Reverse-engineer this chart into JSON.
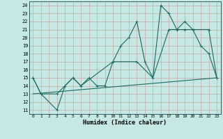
{
  "xlabel": "Humidex (Indice chaleur)",
  "bg_color": "#c5e8e5",
  "grid_color": "#c8a8a8",
  "line_color": "#1a6b60",
  "xlim": [
    -0.5,
    23.5
  ],
  "ylim": [
    10.5,
    24.5
  ],
  "xticks": [
    0,
    1,
    2,
    3,
    4,
    5,
    6,
    7,
    8,
    9,
    10,
    11,
    12,
    13,
    14,
    15,
    16,
    17,
    18,
    19,
    20,
    21,
    22,
    23
  ],
  "yticks": [
    11,
    12,
    13,
    14,
    15,
    16,
    17,
    18,
    19,
    20,
    21,
    22,
    23,
    24
  ],
  "line1_x": [
    0,
    1,
    3,
    4,
    5,
    6,
    7,
    8,
    9,
    10,
    11,
    12,
    13,
    14,
    15,
    16,
    17,
    18,
    19,
    20,
    21,
    22,
    23
  ],
  "line1_y": [
    15,
    13,
    11,
    14,
    15,
    14,
    15,
    14,
    14,
    17,
    19,
    20,
    22,
    17,
    15,
    24,
    23,
    21,
    22,
    21,
    19,
    18,
    15
  ],
  "line2_x": [
    0,
    1,
    3,
    5,
    6,
    10,
    13,
    15,
    17,
    18,
    19,
    20,
    22,
    23
  ],
  "line2_y": [
    15,
    13,
    13,
    15,
    14,
    17,
    17,
    15,
    21,
    21,
    21,
    21,
    21,
    15
  ],
  "line3_x": [
    0,
    23
  ],
  "line3_y": [
    13,
    15
  ]
}
